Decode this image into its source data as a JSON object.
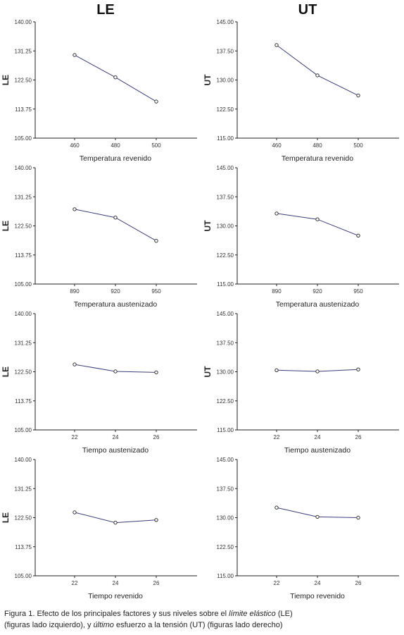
{
  "figure": {
    "left_column_title": "LE",
    "right_column_title": "UT",
    "caption": {
      "part1": "Figura 1. Efecto de los principales factores y sus niveles sobre el ",
      "italic1": "límite elástico",
      "part2": " (LE)",
      "part3": "(figuras lado izquierdo), y ",
      "italic2": "último",
      "part4": " esfuerzo a la tensión (UT) (figuras lado derecho)"
    }
  },
  "chart_data": [
    {
      "type": "line",
      "ylabel": "LE",
      "xlabel": "Temperatura revenido",
      "categories": [
        "460",
        "480",
        "500"
      ],
      "values": [
        130.0,
        123.3,
        116.0
      ],
      "ylim": [
        105,
        140
      ],
      "yticks": [
        "105.00",
        "113.75",
        "122.50",
        "131.25",
        "140.00"
      ]
    },
    {
      "type": "line",
      "ylabel": "UT",
      "xlabel": "Temperatura revenido",
      "categories": [
        "460",
        "480",
        "500"
      ],
      "values": [
        139.0,
        131.2,
        126.0
      ],
      "ylim": [
        115,
        145
      ],
      "yticks": [
        "115.00",
        "122.50",
        "130.00",
        "137.50",
        "145.00"
      ]
    },
    {
      "type": "line",
      "ylabel": "LE",
      "xlabel": "Temperatura austenizado",
      "categories": [
        "890",
        "920",
        "950"
      ],
      "values": [
        127.5,
        125.0,
        118.0
      ],
      "ylim": [
        105,
        140
      ],
      "yticks": [
        "105.00",
        "113.75",
        "122.50",
        "131.25",
        "140.00"
      ]
    },
    {
      "type": "line",
      "ylabel": "UT",
      "xlabel": "Temperatura austenizado",
      "categories": [
        "890",
        "920",
        "950"
      ],
      "values": [
        133.2,
        131.7,
        127.5
      ],
      "ylim": [
        115,
        145
      ],
      "yticks": [
        "115.00",
        "122.50",
        "130.00",
        "137.50",
        "145.00"
      ]
    },
    {
      "type": "line",
      "ylabel": "LE",
      "xlabel": "Tiempo austenizado",
      "categories": [
        "22",
        "24",
        "26"
      ],
      "values": [
        124.7,
        122.6,
        122.3
      ],
      "ylim": [
        105,
        140
      ],
      "yticks": [
        "105.00",
        "113.75",
        "122.50",
        "131.25",
        "140.00"
      ]
    },
    {
      "type": "line",
      "ylabel": "UT",
      "xlabel": "Tiempo austenizado",
      "categories": [
        "22",
        "24",
        "26"
      ],
      "values": [
        130.4,
        130.1,
        130.6
      ],
      "ylim": [
        115,
        145
      ],
      "yticks": [
        "115.00",
        "122.50",
        "130.00",
        "137.50",
        "145.00"
      ]
    },
    {
      "type": "line",
      "ylabel": "LE",
      "xlabel": "Tiempo revenido",
      "categories": [
        "22",
        "24",
        "26"
      ],
      "values": [
        124.1,
        121.0,
        121.8
      ],
      "ylim": [
        105,
        140
      ],
      "yticks": [
        "105.00",
        "113.75",
        "122.50",
        "131.25",
        "140.00"
      ]
    },
    {
      "type": "line",
      "ylabel": "",
      "xlabel": "Tiempo revenido",
      "categories": [
        "22",
        "24",
        "26"
      ],
      "values": [
        132.6,
        130.2,
        130.0
      ],
      "ylim": [
        115,
        145
      ],
      "yticks": [
        "115.00",
        "122.50",
        "130.00",
        "137.50",
        "145.00"
      ]
    }
  ]
}
